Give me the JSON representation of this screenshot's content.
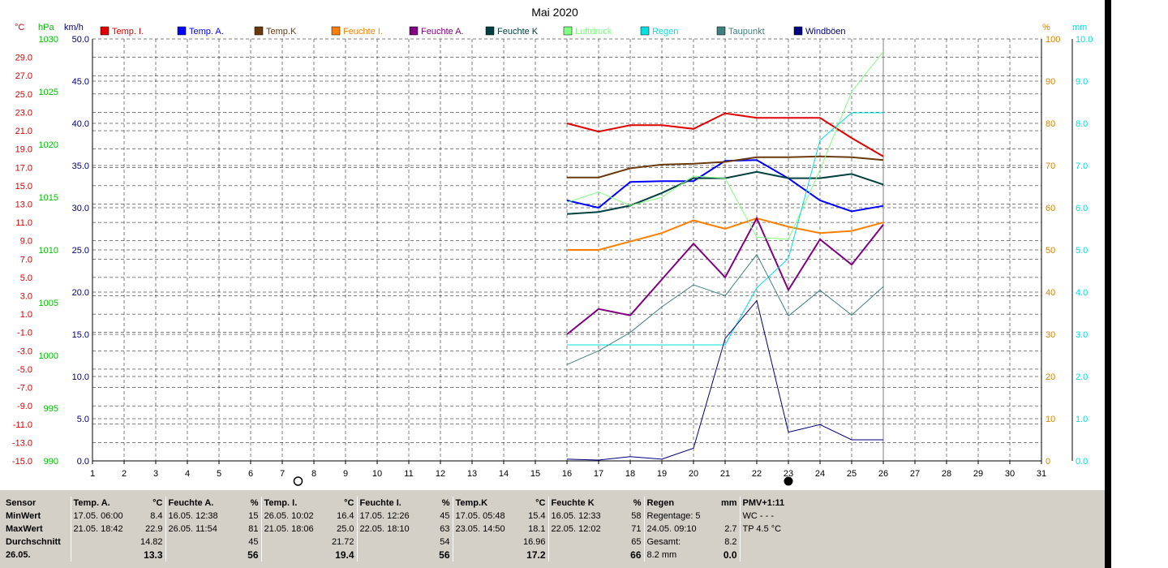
{
  "title": "Mai 2020",
  "axis_units": {
    "temp": "°C",
    "pressure": "hPa",
    "wind": "km/h",
    "humidity": "%",
    "rain": "mm"
  },
  "legend": [
    {
      "label": "Temp. I.",
      "color": "#e00000"
    },
    {
      "label": "Temp. A.",
      "color": "#0000ff"
    },
    {
      "label": "Temp.K",
      "color": "#6b3a0c"
    },
    {
      "label": "Feuchte I.",
      "color": "#ff8000"
    },
    {
      "label": "Feuchte A.",
      "color": "#800080"
    },
    {
      "label": "Feuchte K",
      "color": "#004040"
    },
    {
      "label": "Luftdruck",
      "color": "#80ff80"
    },
    {
      "label": "Regen",
      "color": "#00e0e0"
    },
    {
      "label": "Taupunkt",
      "color": "#408080"
    },
    {
      "label": "Windböen",
      "color": "#000080"
    }
  ],
  "chart_data": {
    "type": "line",
    "title": "Mai 2020",
    "x": [
      16,
      17,
      18,
      19,
      20,
      21,
      22,
      23,
      24,
      25,
      26
    ],
    "xlim": [
      1,
      31
    ],
    "x_ticks": [
      "1",
      "2",
      "3",
      "4",
      "5",
      "6",
      "7",
      "8",
      "9",
      "10",
      "11",
      "12",
      "13",
      "14",
      "15",
      "16",
      "17",
      "18",
      "19",
      "20",
      "21",
      "22",
      "23",
      "24",
      "25",
      "26",
      "27",
      "28",
      "29",
      "30",
      "31"
    ],
    "axes": {
      "temp": {
        "unit": "°C",
        "ylim": [
          -15,
          31
        ],
        "ticks": [
          "29.0",
          "27.0",
          "25.0",
          "23.0",
          "21.0",
          "19.0",
          "17.0",
          "15.0",
          "13.0",
          "11.0",
          "9.0",
          "7.0",
          "5.0",
          "3.0",
          "1.0",
          "-1.0",
          "-3.0",
          "-5.0",
          "-7.0",
          "-9.0",
          "-11.0",
          "-13.0",
          "-15.0"
        ],
        "color": "#e00000"
      },
      "pressure": {
        "unit": "hPa",
        "ylim": [
          990,
          1030
        ],
        "ticks": [
          "1030",
          "1025",
          "1020",
          "1015",
          "1010",
          "1005",
          "1000",
          "995",
          "990"
        ],
        "color": "#00c000"
      },
      "wind": {
        "unit": "km/h",
        "ylim": [
          0,
          50
        ],
        "ticks": [
          "50.0",
          "45.0",
          "40.0",
          "35.0",
          "30.0",
          "25.0",
          "20.0",
          "15.0",
          "10.0",
          "5.0",
          "0.0"
        ],
        "color": "#000080"
      },
      "humidity": {
        "unit": "%",
        "ylim": [
          0,
          100
        ],
        "ticks": [
          "100",
          "90",
          "80",
          "70",
          "60",
          "50",
          "40",
          "30",
          "20",
          "10",
          "0"
        ],
        "color": "#e08000"
      },
      "rain": {
        "unit": "mm",
        "ylim": [
          0,
          10
        ],
        "ticks": [
          "10.0",
          "9.0",
          "8.0",
          "7.0",
          "6.0",
          "5.0",
          "4.0",
          "3.0",
          "2.0",
          "1.0",
          "0.0"
        ],
        "color": "#00e0e0"
      }
    },
    "grid": true,
    "series": [
      {
        "name": "Temp. I.",
        "axis": "temp",
        "color": "#e00000",
        "width": 2,
        "values": [
          21.8,
          20.9,
          21.6,
          21.6,
          21.2,
          22.9,
          22.4,
          22.4,
          22.4,
          20.2,
          18.2
        ]
      },
      {
        "name": "Temp. A.",
        "axis": "temp",
        "color": "#0000ff",
        "width": 2,
        "values": [
          13.4,
          12.6,
          15.4,
          15.5,
          15.5,
          17.7,
          17.8,
          15.8,
          13.4,
          12.2,
          12.8
        ]
      },
      {
        "name": "Temp.K",
        "axis": "temp",
        "color": "#6b3a0c",
        "width": 2,
        "values": [
          15.9,
          15.9,
          16.9,
          17.3,
          17.4,
          17.6,
          18.1,
          18.1,
          18.2,
          18.1,
          17.8
        ]
      },
      {
        "name": "Feuchte I.",
        "axis": "humidity",
        "color": "#ff8000",
        "width": 2,
        "values": [
          50,
          50,
          52,
          54,
          57,
          55,
          57.5,
          55.5,
          54,
          54.5,
          56.5
        ]
      },
      {
        "name": "Feuchte A.",
        "axis": "humidity",
        "color": "#800080",
        "width": 2,
        "values": [
          30,
          36,
          34.5,
          43,
          51.5,
          43.5,
          57.5,
          40.5,
          52.5,
          46.5,
          56
        ]
      },
      {
        "name": "Feuchte K",
        "axis": "humidity",
        "color": "#004040",
        "width": 2,
        "values": [
          58.5,
          59,
          60.5,
          63.5,
          67,
          67,
          68.5,
          67,
          67,
          68,
          65.5
        ]
      },
      {
        "name": "Luftdruck",
        "axis": "pressure",
        "color": "#80ff80",
        "width": 1,
        "values": [
          1014.5,
          1015.5,
          1014.2,
          1015.0,
          1017.0,
          1016.8,
          1011.2,
          1011.0,
          1017.6,
          1025.0,
          1028.8
        ]
      },
      {
        "name": "Regen",
        "axis": "rain",
        "color": "#00e0e0",
        "width": 1,
        "values": [
          2.75,
          2.75,
          2.75,
          2.75,
          2.75,
          2.75,
          4.1,
          4.8,
          7.6,
          8.25,
          8.25
        ]
      },
      {
        "name": "Taupunkt",
        "axis": "temp",
        "color": "#408080",
        "width": 1,
        "values": [
          -4.5,
          -3.0,
          -1.0,
          1.8,
          4.2,
          3.0,
          7.5,
          0.8,
          3.6,
          0.9,
          4.0
        ]
      },
      {
        "name": "Windböen",
        "axis": "wind",
        "color": "#000080",
        "width": 1,
        "values": [
          0.2,
          0.1,
          0.5,
          0.2,
          1.5,
          14.5,
          19.0,
          3.4,
          4.3,
          2.5,
          2.5
        ]
      }
    ],
    "moon_markers": [
      {
        "day": 7.5,
        "phase": "full"
      },
      {
        "day": 23,
        "phase": "new"
      }
    ]
  },
  "table": {
    "sensor_col": {
      "header": "Sensor",
      "rows": [
        "MinWert",
        "MaxWert",
        "Durchschnitt",
        "26.05."
      ]
    },
    "columns": [
      {
        "name": "Temp. A.",
        "unit": "°C",
        "min_time": "17.05.  06:00",
        "min": "8.4",
        "max_time": "21.05.  18:42",
        "max": "22.9",
        "avg": "14.82",
        "day": "13.3"
      },
      {
        "name": "Feuchte A.",
        "unit": "%",
        "min_time": "16.05.  12:38",
        "min": "15",
        "max_time": "26.05.  11:54",
        "max": "81",
        "avg": "45",
        "day": "56"
      },
      {
        "name": "Temp. I.",
        "unit": "°C",
        "min_time": "26.05.  10:02",
        "min": "16.4",
        "max_time": "21.05.  18:06",
        "max": "25.0",
        "avg": "21.72",
        "day": "19.4"
      },
      {
        "name": "Feuchte I.",
        "unit": "%",
        "min_time": "17.05.  12:26",
        "min": "45",
        "max_time": "22.05.  18:10",
        "max": "63",
        "avg": "54",
        "day": "56"
      },
      {
        "name": "Temp.K",
        "unit": "°C",
        "min_time": "17.05.  05:48",
        "min": "15.4",
        "max_time": "23.05.  14:50",
        "max": "18.1",
        "avg": "16.96",
        "day": "17.2"
      },
      {
        "name": "Feuchte K",
        "unit": "%",
        "min_time": "16.05.  12:33",
        "min": "58",
        "max_time": "22.05.  12:02",
        "max": "71",
        "avg": "65",
        "day": "66"
      }
    ],
    "rain": {
      "name": "Regen",
      "unit": "mm",
      "r1_label": "Regentage: 5",
      "r2_label": "24.05.  09:10",
      "r2_val": "2.7",
      "r3_label": "Gesamt:",
      "r3_val": "8.2",
      "r4_label": " 8.2 mm",
      "r4_val": "0.0"
    },
    "pmv": {
      "name": "PMV+1:11",
      "wc": "WC - - -",
      "tp": "TP 4.5 °C"
    }
  }
}
